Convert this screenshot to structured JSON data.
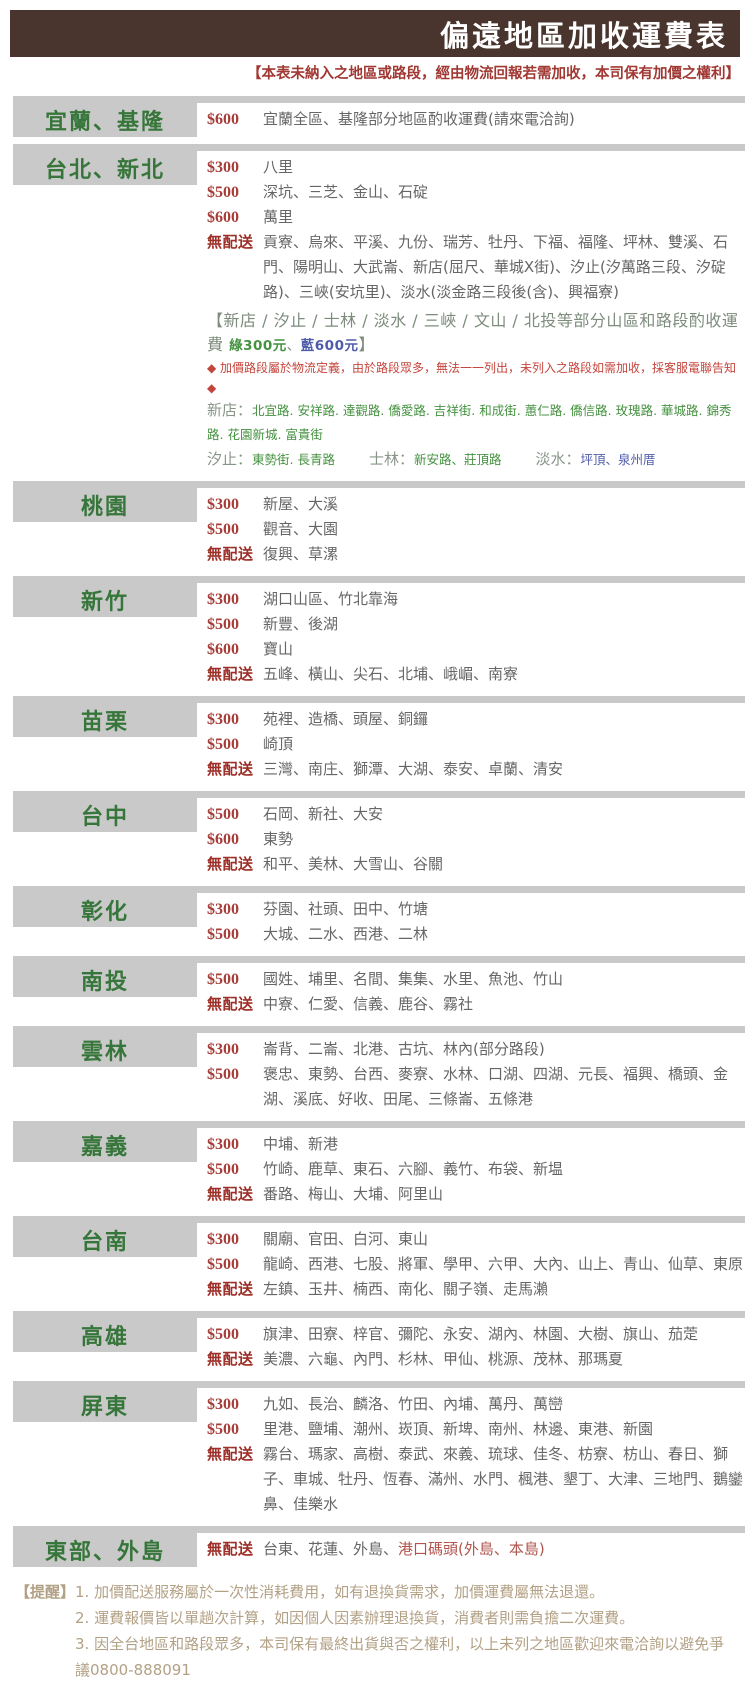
{
  "header": {
    "title": "偏遠地區加收運費表",
    "subtitle": "【本表未納入之地區或路段，經由物流回報若需加收，本司保有加價之權利】"
  },
  "colors": {
    "header_bg": "#4a342e",
    "header_text": "#ffffff",
    "subtitle_red": "#a13833",
    "bar_gray": "#c9c9c9",
    "region_green": "#37763a",
    "price_red": "#a63d38",
    "no_ship_red": "#9e2f28",
    "body_gray": "#666666",
    "note_gray_green": "#7d8c7d",
    "street_green": "#44913f",
    "street_blue": "#4f5caa",
    "caution_red": "#c4453c",
    "port_red": "#b0554d",
    "footer_tan": "#b3a186"
  },
  "sections": [
    {
      "label": "宜蘭、基隆",
      "rows": [
        {
          "tag": "$600",
          "places": "宜蘭全區、基隆部分地區酌收運費(請來電洽詢)"
        }
      ]
    },
    {
      "label": "台北、新北",
      "rows": [
        {
          "tag": "$300",
          "places": "八里"
        },
        {
          "tag": "$500",
          "places": "深坑、三芝、金山、石碇"
        },
        {
          "tag": "$600",
          "places": "萬里"
        },
        {
          "tag": "無配送",
          "places": "貢寮、烏來、平溪、九份、瑞芳、牡丹、下福、福隆、坪林、雙溪、石門、陽明山、大武崙、新店(屈尺、華城X街)、汐止(汐萬路三段、汐碇路)、三峽(安坑里)、淡水(淡金路三段後(含)、興福寮)"
        }
      ],
      "note": {
        "title": "【新店 / 汐止 / 士林 / 淡水 / 三峽 / 文山 / 北投等部分山區和路段酌收運費 ",
        "fee_green": "綠300元",
        "fee_sep": "、",
        "fee_blue": "藍600元",
        "title_close": "】",
        "caution": "◆ 加價路段屬於物流定義，由於路段眾多，無法一一列出，未列入之路段如需加收，採客服電聯告知 ◆",
        "streets": {
          "xindian_label": "新店：",
          "xindian": "北宜路. 安祥路. 達觀路. 僑愛路. 吉祥街. 和成街. 蕙仁路. 僑信路. 玫瑰路. 華城路. 錦秀路. 花園新城. 富貴街",
          "xizhi_label": "汐止：",
          "xizhi": "東勢街. 長青路",
          "shilin_label": "士林：",
          "shilin": "新安路、莊頂路",
          "tamsui_label": "淡水：",
          "tamsui": "坪頂、泉州厝"
        }
      }
    },
    {
      "label": "桃園",
      "rows": [
        {
          "tag": "$300",
          "places": "新屋、大溪"
        },
        {
          "tag": "$500",
          "places": "觀音、大園"
        },
        {
          "tag": "無配送",
          "places": "復興、草漯"
        }
      ]
    },
    {
      "label": "新竹",
      "rows": [
        {
          "tag": "$300",
          "places": "湖口山區、竹北靠海"
        },
        {
          "tag": "$500",
          "places": "新豐、後湖"
        },
        {
          "tag": "$600",
          "places": "寶山"
        },
        {
          "tag": "無配送",
          "places": "五峰、橫山、尖石、北埔、峨嵋、南寮"
        }
      ]
    },
    {
      "label": "苗栗",
      "rows": [
        {
          "tag": "$300",
          "places": "苑裡、造橋、頭屋、銅鑼"
        },
        {
          "tag": "$500",
          "places": "崎頂"
        },
        {
          "tag": "無配送",
          "places": "三灣、南庄、獅潭、大湖、泰安、卓蘭、清安"
        }
      ]
    },
    {
      "label": "台中",
      "rows": [
        {
          "tag": "$500",
          "places": "石岡、新社、大安"
        },
        {
          "tag": "$600",
          "places": "東勢"
        },
        {
          "tag": "無配送",
          "places": "和平、美林、大雪山、谷關"
        }
      ]
    },
    {
      "label": "彰化",
      "rows": [
        {
          "tag": "$300",
          "places": "芬園、社頭、田中、竹塘"
        },
        {
          "tag": "$500",
          "places": "大城、二水、西港、二林"
        }
      ]
    },
    {
      "label": "南投",
      "rows": [
        {
          "tag": "$500",
          "places": "國姓、埔里、名間、集集、水里、魚池、竹山"
        },
        {
          "tag": "無配送",
          "places": "中寮、仁愛、信義、鹿谷、霧社"
        }
      ]
    },
    {
      "label": "雲林",
      "rows": [
        {
          "tag": "$300",
          "places": "崙背、二崙、北港、古坑、林內(部分路段)"
        },
        {
          "tag": "$500",
          "places": "褒忠、東勢、台西、麥寮、水林、口湖、四湖、元長、福興、橋頭、金湖、溪底、好收、田尾、三條崙、五條港"
        }
      ]
    },
    {
      "label": "嘉義",
      "rows": [
        {
          "tag": "$300",
          "places": "中埔、新港"
        },
        {
          "tag": "$500",
          "places": "竹崎、鹿草、東石、六腳、義竹、布袋、新塭"
        },
        {
          "tag": "無配送",
          "places": "番路、梅山、大埔、阿里山"
        }
      ]
    },
    {
      "label": "台南",
      "rows": [
        {
          "tag": "$300",
          "places": "關廟、官田、白河、東山"
        },
        {
          "tag": "$500",
          "places": "龍崎、西港、七股、將軍、學甲、六甲、大內、山上、青山、仙草、東原"
        },
        {
          "tag": "無配送",
          "places": "左鎮、玉井、楠西、南化、關子嶺、走馬瀨"
        }
      ]
    },
    {
      "label": "高雄",
      "rows": [
        {
          "tag": "$500",
          "places": "旗津、田寮、梓官、彌陀、永安、湖內、林園、大樹、旗山、茄萣"
        },
        {
          "tag": "無配送",
          "places": "美濃、六龜、內門、杉林、甲仙、桃源、茂林、那瑪夏"
        }
      ]
    },
    {
      "label": "屏東",
      "rows": [
        {
          "tag": "$300",
          "places": "九如、長治、麟洛、竹田、內埔、萬丹、萬巒"
        },
        {
          "tag": "$500",
          "places": "里港、鹽埔、潮州、崁頂、新埤、南州、林邊、東港、新園"
        },
        {
          "tag": "無配送",
          "places": "霧台、瑪家、高樹、泰武、來義、琉球、佳冬、枋寮、枋山、春日、獅子、車城、牡丹、恆春、滿州、水門、楓港、墾丁、大津、三地門、鵝鑾鼻、佳樂水"
        }
      ]
    },
    {
      "label": "東部、外島",
      "rows": [
        {
          "tag": "無配送",
          "places": "台東、花蓮、外島、",
          "places_red": "港口碼頭(外島、本島)"
        }
      ]
    }
  ],
  "footer": {
    "label": "【提醒】",
    "notes": [
      "1. 加價配送服務屬於一次性消耗費用，如有退換貨需求，加價運費屬無法退還。",
      "2. 運費報價皆以單趟次計算，如因個人因素辦理退換貨，消費者則需負擔二次運費。",
      "3. 因全台地區和路段眾多，本司保有最終出貨與否之權利，以上未列之地區歡迎來電洽詢以避免爭議0800-888091"
    ]
  }
}
